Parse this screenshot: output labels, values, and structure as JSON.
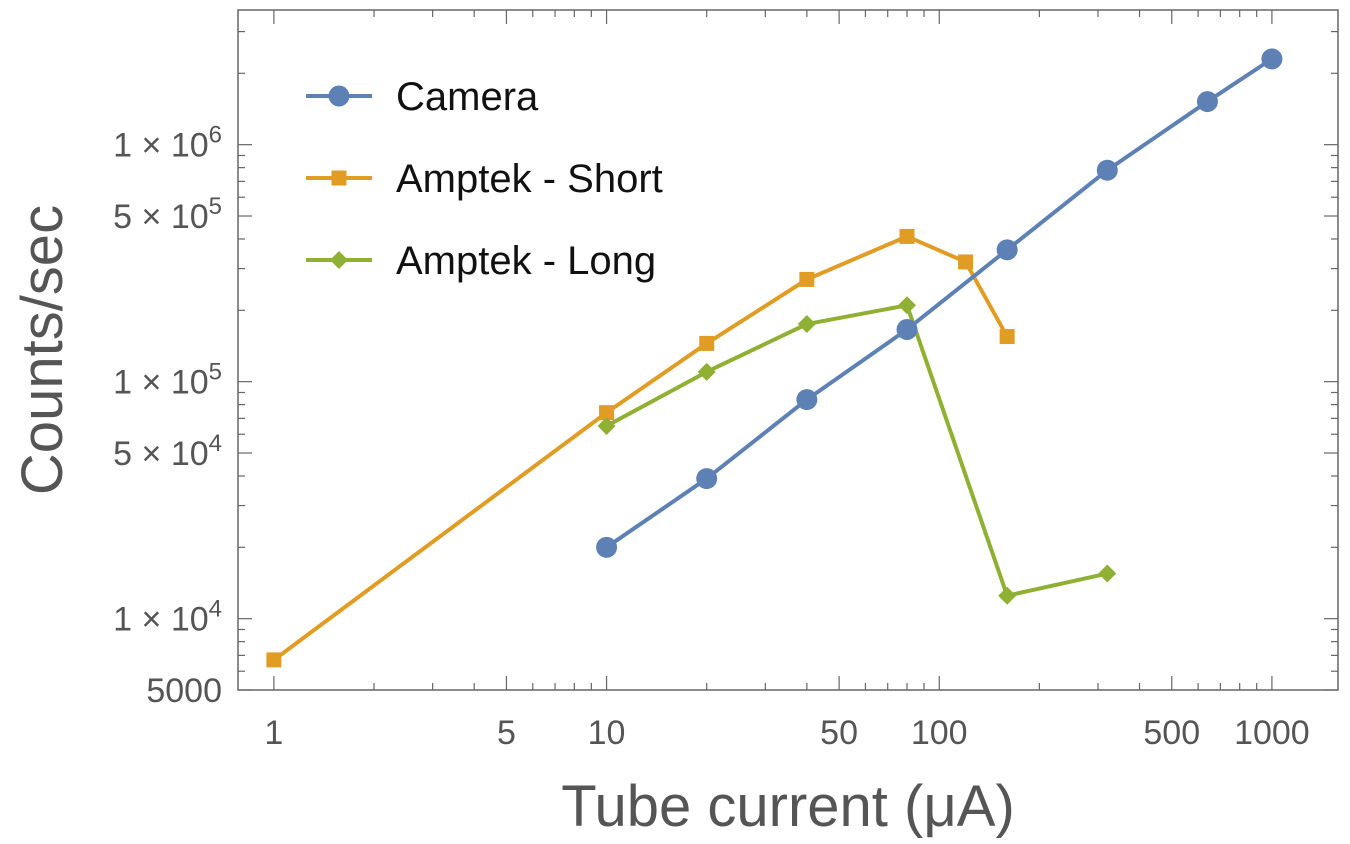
{
  "chart_data": {
    "type": "line",
    "xscale": "log",
    "yscale": "log",
    "xlim": [
      0.78,
      1580
    ],
    "ylim": [
      5000,
      3700000
    ],
    "xlabel": "Tube current (μA)",
    "ylabel": "Counts/sec",
    "legend_position": "top-left",
    "grid": false,
    "x_ticks": [
      {
        "value": 1,
        "label": "1"
      },
      {
        "value": 5,
        "label": "5"
      },
      {
        "value": 10,
        "label": "10"
      },
      {
        "value": 50,
        "label": "50"
      },
      {
        "value": 100,
        "label": "100"
      },
      {
        "value": 500,
        "label": "500"
      },
      {
        "value": 1000,
        "label": "1000"
      }
    ],
    "y_ticks": [
      {
        "value": 5000,
        "label": "5000"
      },
      {
        "value": 10000,
        "mantissa": "1",
        "exponent": "4"
      },
      {
        "value": 50000,
        "mantissa": "5",
        "exponent": "4"
      },
      {
        "value": 100000,
        "mantissa": "1",
        "exponent": "5"
      },
      {
        "value": 500000,
        "mantissa": "5",
        "exponent": "5"
      },
      {
        "value": 1000000,
        "mantissa": "1",
        "exponent": "6"
      }
    ],
    "series": [
      {
        "name": "Camera",
        "color": "#5e81b5",
        "marker": "circle",
        "x": [
          10,
          20,
          40,
          80,
          160,
          320,
          640,
          1000
        ],
        "y": [
          20000,
          39000,
          84000,
          166000,
          360000,
          780000,
          1520000,
          2300000
        ]
      },
      {
        "name": "Amptek - Short",
        "color": "#e19c24",
        "marker": "square",
        "x": [
          1,
          10,
          20,
          40,
          80,
          120,
          160
        ],
        "y": [
          6700,
          74000,
          145000,
          270000,
          410000,
          320000,
          155000
        ]
      },
      {
        "name": "Amptek - Long",
        "color": "#8fb032",
        "marker": "diamond",
        "x": [
          10,
          20,
          40,
          80,
          160,
          320
        ],
        "y": [
          65000,
          110000,
          175000,
          210000,
          12500,
          15500
        ]
      }
    ]
  }
}
